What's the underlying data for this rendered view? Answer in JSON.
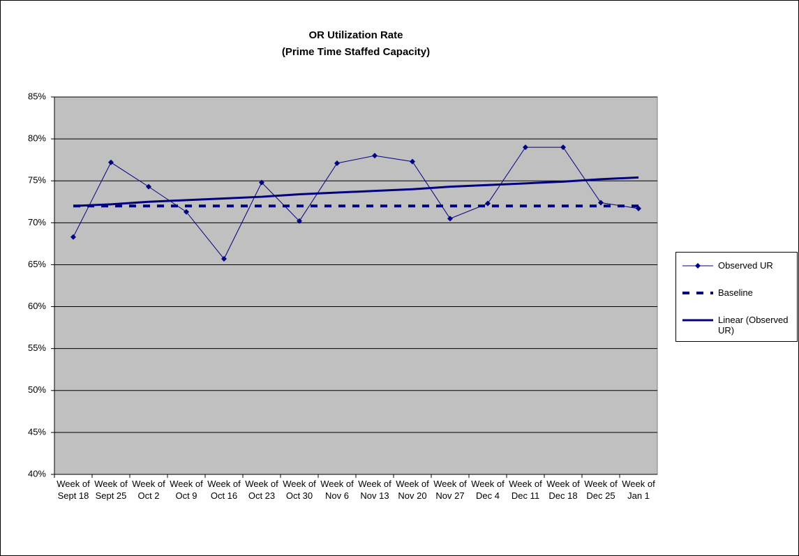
{
  "chart_data": {
    "type": "line",
    "title": "OR Utilization Rate",
    "subtitle": "(Prime Time Staffed Capacity)",
    "categories": [
      "Week of Sept 18",
      "Week of Sept 25",
      "Week of Oct 2",
      "Week of Oct 9",
      "Week of Oct 16",
      "Week of Oct 23",
      "Week of Oct 30",
      "Week of Nov 6",
      "Week of Nov 13",
      "Week of Nov 20",
      "Week of Nov 27",
      "Week of Dec 4",
      "Week of Dec 11",
      "Week of Dec 18",
      "Week of Dec 25",
      "Week of Jan 1"
    ],
    "series": [
      {
        "name": "Observed UR",
        "color": "#000080",
        "style": "marker",
        "values": [
          68.3,
          77.2,
          74.3,
          71.3,
          65.7,
          74.8,
          70.2,
          77.1,
          78.0,
          77.3,
          70.5,
          72.3,
          79.0,
          79.0,
          72.4,
          71.7
        ]
      },
      {
        "name": "Baseline",
        "color": "#000080",
        "style": "dashed",
        "values": [
          72,
          72,
          72,
          72,
          72,
          72,
          72,
          72,
          72,
          72,
          72,
          72,
          72,
          72,
          72,
          72
        ]
      },
      {
        "name": "Linear (Observed UR)",
        "color": "#000080",
        "style": "thick",
        "values": [
          72.0,
          72.2,
          72.5,
          72.7,
          72.9,
          73.1,
          73.4,
          73.6,
          73.8,
          74.0,
          74.3,
          74.5,
          74.7,
          74.9,
          75.2,
          75.4
        ]
      }
    ],
    "ylim": [
      40,
      85
    ],
    "yticks": [
      {
        "value": 40,
        "label": "40%"
      },
      {
        "value": 45,
        "label": "45%"
      },
      {
        "value": 50,
        "label": "50%"
      },
      {
        "value": 55,
        "label": "55%"
      },
      {
        "value": 60,
        "label": "60%"
      },
      {
        "value": 65,
        "label": "65%"
      },
      {
        "value": 70,
        "label": "70%"
      },
      {
        "value": 75,
        "label": "75%"
      },
      {
        "value": 80,
        "label": "80%"
      },
      {
        "value": 85,
        "label": "85%"
      }
    ],
    "grid": true,
    "legend": "right"
  }
}
